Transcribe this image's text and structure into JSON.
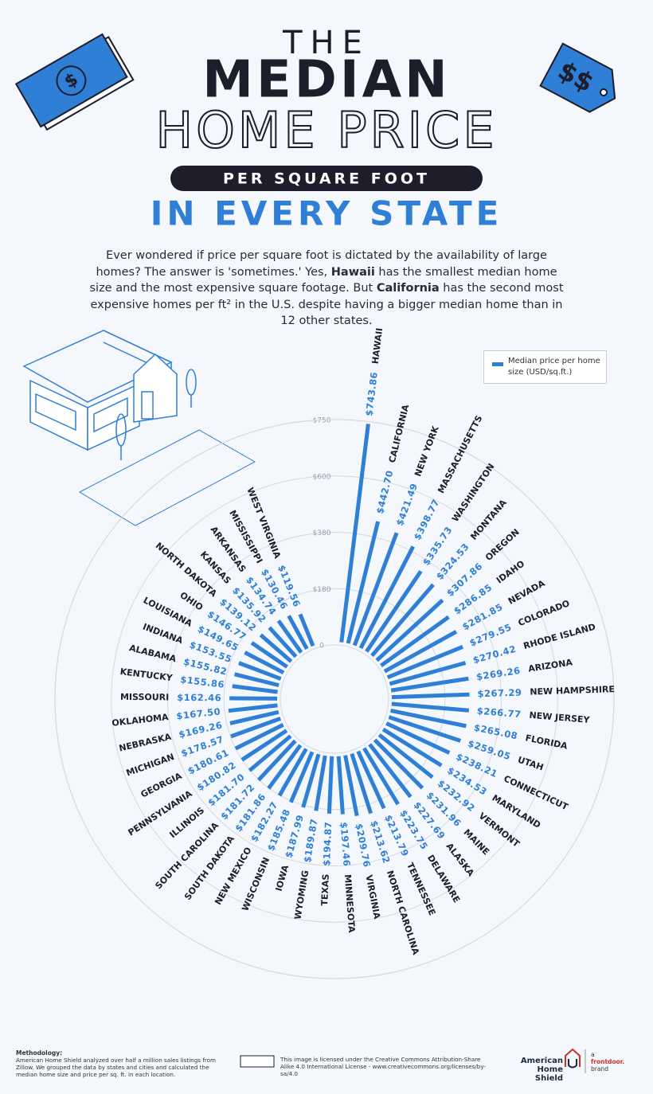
{
  "header": {
    "line1": "THE",
    "line2": "MEDIAN",
    "line3": "HOME PRICE",
    "badge": "PER SQUARE FOOT",
    "line4": "IN EVERY STATE"
  },
  "intro": {
    "parts": [
      "Ever wondered if price per square foot is dictated by the availability of large homes? The answer is 'sometimes.' Yes, ",
      "Hawaii",
      " has the smallest median home size and the most expensive square footage. But ",
      "California",
      " has the second most expensive homes per ft² in the U.S. despite having a bigger median home than in 12 other states."
    ]
  },
  "chart_data": {
    "type": "radialbar",
    "categories": [
      "HAWAII",
      "CALIFORNIA",
      "NEW YORK",
      "MASSACHUSETTS",
      "WASHINGTON",
      "MONTANA",
      "OREGON",
      "IDAHO",
      "NEVADA",
      "COLORADO",
      "RHODE ISLAND",
      "ARIZONA",
      "NEW HAMPSHIRE",
      "NEW JERSEY",
      "FLORIDA",
      "UTAH",
      "CONNECTICUT",
      "MARYLAND",
      "VERMONT",
      "MAINE",
      "ALASKA",
      "DELAWARE",
      "TENNESSEE",
      "NORTH CAROLINA",
      "VIRGINIA",
      "MINNESOTA",
      "TEXAS",
      "WYOMING",
      "IOWA",
      "WISCONSIN",
      "NEW MEXICO",
      "SOUTH DAKOTA",
      "SOUTH CAROLINA",
      "ILLINOIS",
      "PENNSYLVANIA",
      "GEORGIA",
      "MICHIGAN",
      "NEBRASKA",
      "OKLAHOMA",
      "MISSOURI",
      "KENTUCKY",
      "ALABAMA",
      "INDIANA",
      "LOUISIANA",
      "OHIO",
      "NORTH DAKOTA",
      "KANSAS",
      "ARKANSAS",
      "MISSISSIPPI",
      "WEST VIRGINIA"
    ],
    "series": [
      {
        "name": "Median price per home size (USD/sq.ft.)",
        "color": "#2f7fd6",
        "values": [
          743.86,
          442.7,
          421.49,
          398.77,
          335.73,
          324.53,
          307.86,
          286.85,
          281.85,
          279.55,
          270.42,
          269.26,
          267.29,
          266.77,
          265.08,
          259.05,
          238.21,
          234.53,
          232.92,
          231.96,
          227.69,
          223.75,
          213.79,
          213.62,
          209.76,
          197.46,
          194.87,
          189.87,
          187.99,
          185.48,
          182.27,
          181.86,
          181.72,
          181.7,
          180.82,
          180.61,
          178.57,
          169.26,
          167.5,
          162.46,
          155.86,
          155.82,
          153.55,
          149.65,
          146.77,
          139.12,
          135.92,
          134.74,
          130.46,
          119.56
        ],
        "value_labels": [
          "$743.86",
          "$442.70",
          "$421.49",
          "$398.77",
          "$335.73",
          "$324.53",
          "$307.86",
          "$286.85",
          "$281.85",
          "$279.55",
          "$270.42",
          "$269.26",
          "$267.29",
          "$266.77",
          "$265.08",
          "$259.05",
          "$238.21",
          "$234.53",
          "$232.92",
          "$231.96",
          "$227.69",
          "$223.75",
          "$213.79",
          "$213.62",
          "$209.76",
          "$197.46",
          "$194.87",
          "$189.87",
          "$187.99",
          "$185.48",
          "$182.27",
          "$181.86",
          "$181.72",
          "$181.70",
          "$180.82",
          "$180.61",
          "$178.57",
          "$169.26",
          "$167.50",
          "$162.46",
          "$155.86",
          "$155.82",
          "$153.55",
          "$149.65",
          "$146.77",
          "$139.12",
          "$135.92",
          "$134.74",
          "$130.46",
          "$119.56"
        ]
      }
    ],
    "ylim": [
      0,
      750
    ],
    "yticks": [
      0,
      {
        "value": 180,
        "label": "$180"
      },
      {
        "value": 380,
        "label": "$380"
      },
      {
        "value": 600,
        "label": "$600"
      },
      {
        "value": 750,
        "label": "$750"
      }
    ],
    "grid": true
  },
  "footer": {
    "methodology_title": "Methodology:",
    "methodology": "American Home Shield analyzed over half a million sales listings from Zillow. We grouped the data by states and cities and calculated the median home size and price per sq. ft. in each location.",
    "license": "This image is licensed under the Creative Commons Attribution-Share Alike 4.0 International License - www.creativecommons.org/licenses/by-sa/4.0",
    "brand": "American Home Shield",
    "brand_a": "a",
    "brand_fd": "frontdoor.",
    "brand_b": "brand"
  }
}
